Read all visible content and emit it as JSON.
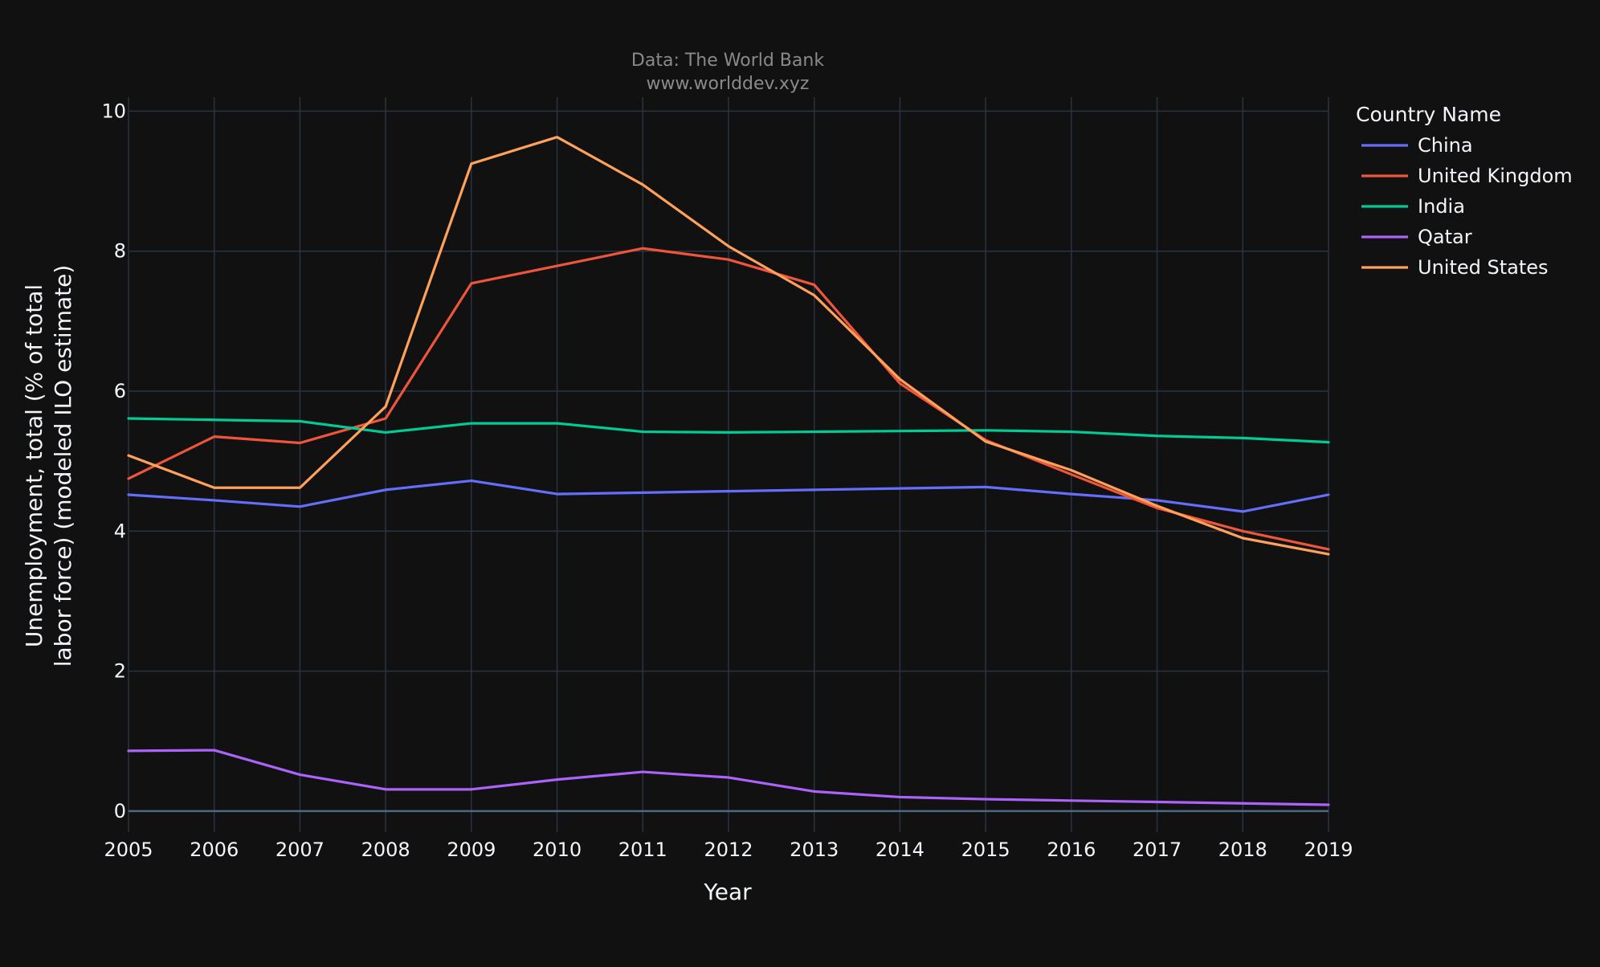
{
  "header": {
    "source_line_1": "Data: The World Bank",
    "source_line_2": "www.worlddev.xyz"
  },
  "colors": {
    "background": "#111111",
    "grid": "#283442",
    "zero_line": "#506784",
    "text": "#f2f5fa",
    "muted_text": "#8a8a8a"
  },
  "chart_data": {
    "type": "line",
    "title": "",
    "xlabel": "Year",
    "ylabel_lines": [
      "Unemployment, total (% of total",
      "labor force) (modeled ILO estimate)"
    ],
    "x": [
      2005,
      2006,
      2007,
      2008,
      2009,
      2010,
      2011,
      2012,
      2013,
      2014,
      2015,
      2016,
      2017,
      2018,
      2019
    ],
    "x_tick_labels": [
      "2005",
      "2006",
      "2007",
      "2008",
      "2009",
      "2010",
      "2011",
      "2012",
      "2013",
      "2014",
      "2015",
      "2016",
      "2017",
      "2018",
      "2019"
    ],
    "xlim": [
      2005,
      2019
    ],
    "ylim": [
      -0.3,
      10.2
    ],
    "y_ticks": [
      0,
      2,
      4,
      6,
      8,
      10
    ],
    "y_tick_labels": [
      "0",
      "2",
      "4",
      "6",
      "8",
      "10"
    ],
    "grid": true,
    "legend_title": "Country Name",
    "legend_position": "right",
    "series": [
      {
        "name": "China",
        "color": "#636efa",
        "values": [
          4.52,
          4.44,
          4.35,
          4.59,
          4.72,
          4.53,
          4.55,
          4.57,
          4.59,
          4.61,
          4.63,
          4.53,
          4.44,
          4.28,
          4.52
        ]
      },
      {
        "name": "United Kingdom",
        "color": "#ef553b",
        "values": [
          4.75,
          5.35,
          5.26,
          5.61,
          7.54,
          7.79,
          8.04,
          7.88,
          7.52,
          6.11,
          5.3,
          4.81,
          4.33,
          4.0,
          3.74
        ]
      },
      {
        "name": "India",
        "color": "#00cc96",
        "values": [
          5.61,
          5.59,
          5.57,
          5.41,
          5.54,
          5.54,
          5.42,
          5.41,
          5.42,
          5.43,
          5.44,
          5.42,
          5.36,
          5.33,
          5.27
        ]
      },
      {
        "name": "Qatar",
        "color": "#ab63fa",
        "values": [
          0.86,
          0.87,
          0.52,
          0.31,
          0.31,
          0.45,
          0.56,
          0.48,
          0.28,
          0.2,
          0.17,
          0.15,
          0.13,
          0.11,
          0.09
        ]
      },
      {
        "name": "United States",
        "color": "#ffa15a",
        "values": [
          5.08,
          4.62,
          4.62,
          5.78,
          9.25,
          9.63,
          8.95,
          8.07,
          7.37,
          6.17,
          5.28,
          4.87,
          4.36,
          3.9,
          3.67
        ]
      }
    ]
  }
}
